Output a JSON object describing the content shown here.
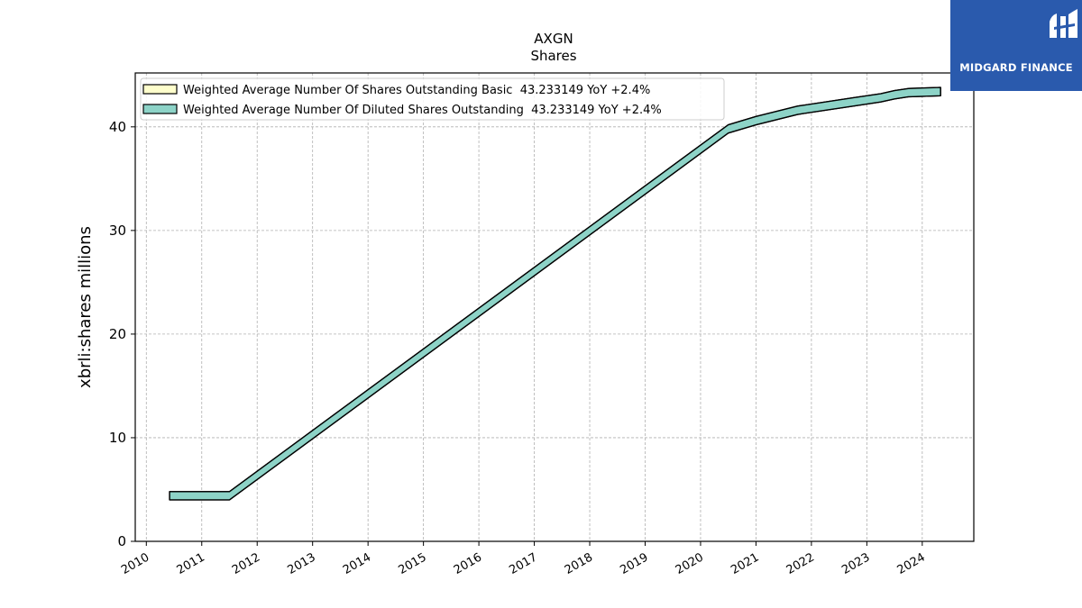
{
  "chart_data": {
    "type": "line",
    "title": "AXGN",
    "subtitle": "Shares",
    "ylabel": "xbrli:shares millions",
    "xlabel": "",
    "xlim": [
      2009.8,
      2024.93
    ],
    "ylim": [
      0,
      45.2
    ],
    "yticks": [
      0,
      10,
      20,
      30,
      40
    ],
    "xticks": [
      "2010",
      "2011",
      "2012",
      "2013",
      "2014",
      "2015",
      "2016",
      "2017",
      "2018",
      "2019",
      "2020",
      "2021",
      "2022",
      "2023",
      "2024"
    ],
    "grid": true,
    "legend_position": "top-left",
    "band_width": 0.8,
    "series": [
      {
        "name": "Weighted Average Number Of Shares Outstanding Basic  43.233149 YoY +2.4%",
        "color": "#ffffcc",
        "x": [
          2010.42,
          2011.5,
          2020.5,
          2021.0,
          2021.75,
          2022.75,
          2023.25,
          2023.5,
          2023.75,
          2024.33
        ],
        "y": [
          4.4,
          4.4,
          39.8,
          40.6,
          41.6,
          42.4,
          42.8,
          43.1,
          43.3,
          43.4
        ]
      },
      {
        "name": "Weighted Average Number Of Diluted Shares Outstanding  43.233149 YoY +2.4%",
        "color": "#8dd3c7",
        "x": [
          2010.42,
          2011.5,
          2020.5,
          2021.0,
          2021.75,
          2022.75,
          2023.25,
          2023.5,
          2023.75,
          2024.33
        ],
        "y": [
          4.4,
          4.4,
          39.8,
          40.6,
          41.6,
          42.4,
          42.8,
          43.1,
          43.3,
          43.4
        ]
      }
    ]
  },
  "logo": {
    "text": "MIDGARD FINANCE",
    "color": "#2a5aad"
  }
}
